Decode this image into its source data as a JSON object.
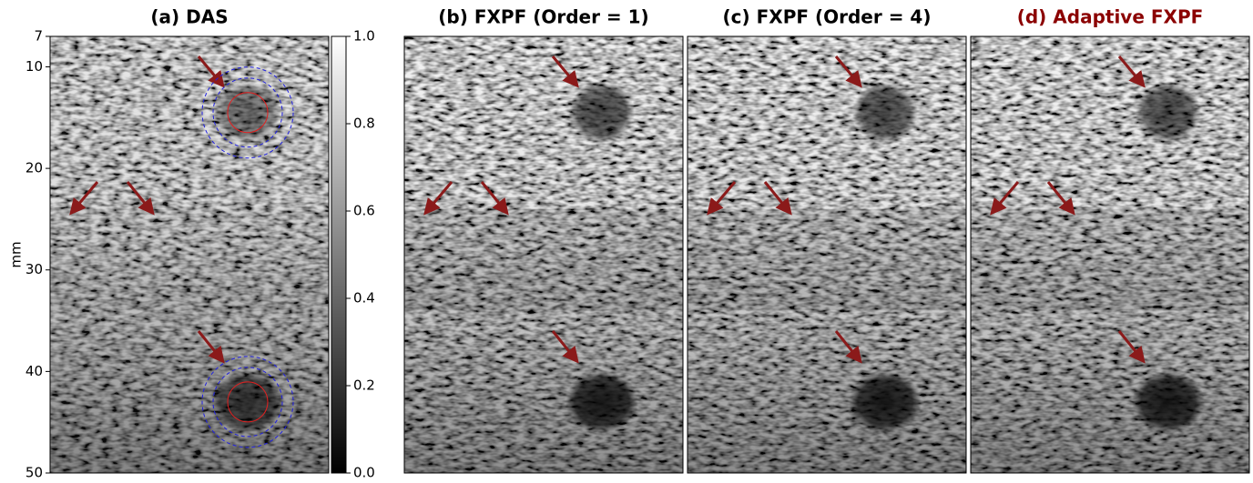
{
  "panels": [
    {
      "title": "(a) DAS"
    },
    {
      "title": "(b) FXPF (Order = 1)"
    },
    {
      "title": "(c) FXPF (Order = 4)"
    },
    {
      "title": "(d) Adaptive FXPF"
    }
  ],
  "y_axis": {
    "label": "mm",
    "lim": [
      7,
      50
    ],
    "ticks": [
      7,
      10,
      20,
      30,
      40,
      50
    ]
  },
  "colorbar": {
    "lim": [
      0,
      1
    ],
    "ticks": [
      {
        "value": 0,
        "label": "0.0"
      },
      {
        "value": 0.2,
        "label": "0.2"
      },
      {
        "value": 0.4,
        "label": "0.4"
      },
      {
        "value": 0.6,
        "label": "0.6"
      },
      {
        "value": 0.8,
        "label": "0.8"
      },
      {
        "value": 1,
        "label": "1.0"
      }
    ]
  }
}
